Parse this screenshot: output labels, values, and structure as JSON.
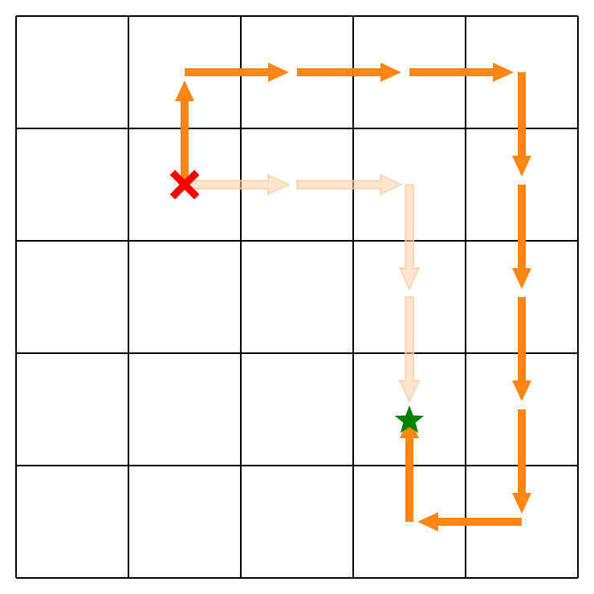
{
  "grid": {
    "rows": 5,
    "cols": 5
  },
  "colors": {
    "grid_line": "#000000",
    "path_main": "#ff8517",
    "path_faded": "#ffcfa6",
    "start_marker": "#ff0000",
    "goal_marker": "#008000"
  },
  "markers": {
    "start": {
      "icon": "x-cross-icon",
      "col": 1,
      "row": 1
    },
    "goal": {
      "icon": "star-icon",
      "col": 3,
      "row": 3.6
    }
  },
  "paths": [
    {
      "name": "optimal",
      "style": "faded",
      "segments": [
        {
          "from": [
            1,
            1
          ],
          "to": [
            2,
            1
          ]
        },
        {
          "from": [
            2,
            1
          ],
          "to": [
            3,
            1
          ]
        },
        {
          "from": [
            3,
            1
          ],
          "to": [
            3,
            2
          ]
        },
        {
          "from": [
            3,
            2
          ],
          "to": [
            3,
            3
          ]
        }
      ]
    },
    {
      "name": "taken",
      "style": "solid",
      "segments": [
        {
          "from": [
            1,
            1
          ],
          "to": [
            1,
            0
          ]
        },
        {
          "from": [
            1,
            0
          ],
          "to": [
            2,
            0
          ]
        },
        {
          "from": [
            2,
            0
          ],
          "to": [
            3,
            0
          ]
        },
        {
          "from": [
            3,
            0
          ],
          "to": [
            4,
            0
          ]
        },
        {
          "from": [
            4,
            0
          ],
          "to": [
            4,
            1
          ]
        },
        {
          "from": [
            4,
            1
          ],
          "to": [
            4,
            2
          ]
        },
        {
          "from": [
            4,
            2
          ],
          "to": [
            4,
            3
          ]
        },
        {
          "from": [
            4,
            3
          ],
          "to": [
            4,
            4
          ]
        },
        {
          "from": [
            4,
            4
          ],
          "to": [
            3,
            4
          ]
        },
        {
          "from": [
            3,
            4
          ],
          "to": [
            3,
            3
          ]
        }
      ]
    }
  ]
}
